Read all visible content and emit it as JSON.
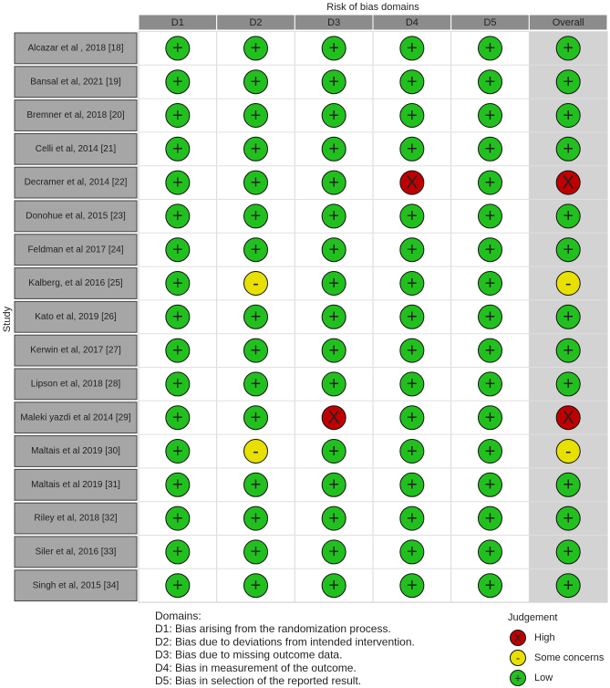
{
  "header": {
    "title": "Risk of bias domains",
    "axis_label": "Study",
    "columns": [
      "D1",
      "D2",
      "D3",
      "D4",
      "D5",
      "Overall"
    ]
  },
  "table": {
    "rows": [
      {
        "study": "Alcazar et al , 2018 [18]",
        "judgements": [
          "+",
          "+",
          "+",
          "+",
          "+",
          "+"
        ]
      },
      {
        "study": "Bansal et al, 2021 [19]",
        "judgements": [
          "+",
          "+",
          "+",
          "+",
          "+",
          "+"
        ]
      },
      {
        "study": "Bremner et al, 2018 [20]",
        "judgements": [
          "+",
          "+",
          "+",
          "+",
          "+",
          "+"
        ]
      },
      {
        "study": "Celli et al, 2014 [21]",
        "judgements": [
          "+",
          "+",
          "+",
          "+",
          "+",
          "+"
        ]
      },
      {
        "study": "Decramer et al, 2014 [22]",
        "judgements": [
          "+",
          "+",
          "+",
          "X",
          "+",
          "X"
        ]
      },
      {
        "study": "Donohue et al, 2015 [23]",
        "judgements": [
          "+",
          "+",
          "+",
          "+",
          "+",
          "+"
        ]
      },
      {
        "study": "Feldman  et al 2017 [24]",
        "judgements": [
          "+",
          "+",
          "+",
          "+",
          "+",
          "+"
        ]
      },
      {
        "study": "Kalberg, et al 2016 [25]",
        "judgements": [
          "+",
          "-",
          "+",
          "+",
          "+",
          "-"
        ]
      },
      {
        "study": "Kato et al, 2019 [26]",
        "judgements": [
          "+",
          "+",
          "+",
          "+",
          "+",
          "+"
        ]
      },
      {
        "study": "Kerwin et al, 2017 [27]",
        "judgements": [
          "+",
          "+",
          "+",
          "+",
          "+",
          "+"
        ]
      },
      {
        "study": "Lipson et al, 2018 [28]",
        "judgements": [
          "+",
          "+",
          "+",
          "+",
          "+",
          "+"
        ]
      },
      {
        "study": "Maleki yazdi et al 2014 [29]",
        "judgements": [
          "+",
          "+",
          "X",
          "+",
          "+",
          "X"
        ]
      },
      {
        "study": "Maltais et al 2019 [30]",
        "judgements": [
          "+",
          "-",
          "+",
          "+",
          "+",
          "-"
        ]
      },
      {
        "study": "Maltais et al 2019 [31]",
        "judgements": [
          "+",
          "+",
          "+",
          "+",
          "+",
          "+"
        ]
      },
      {
        "study": "Riley et al, 2018 [32]",
        "judgements": [
          "+",
          "+",
          "+",
          "+",
          "+",
          "+"
        ]
      },
      {
        "study": "Siler et al, 2016 [33]",
        "judgements": [
          "+",
          "+",
          "+",
          "+",
          "+",
          "+"
        ]
      },
      {
        "study": "Singh et al, 2015 [34]",
        "judgements": [
          "+",
          "+",
          "+",
          "+",
          "+",
          "+"
        ]
      }
    ]
  },
  "domains": {
    "title": "Domains:",
    "items": [
      "D1: Bias arising from the randomization process.",
      "D2: Bias due to deviations from intended intervention.",
      "D3: Bias due to missing outcome data.",
      "D4: Bias in measurement of the outcome.",
      "D5: Bias in selection of the reported result."
    ]
  },
  "legend": {
    "title": "Judgement",
    "items": [
      {
        "symbol": "X",
        "label": "High",
        "color": "#c00000"
      },
      {
        "symbol": "-",
        "label": "Some concerns",
        "color": "#e8e000"
      },
      {
        "symbol": "+",
        "label": "Low",
        "color": "#22c01e"
      }
    ]
  }
}
